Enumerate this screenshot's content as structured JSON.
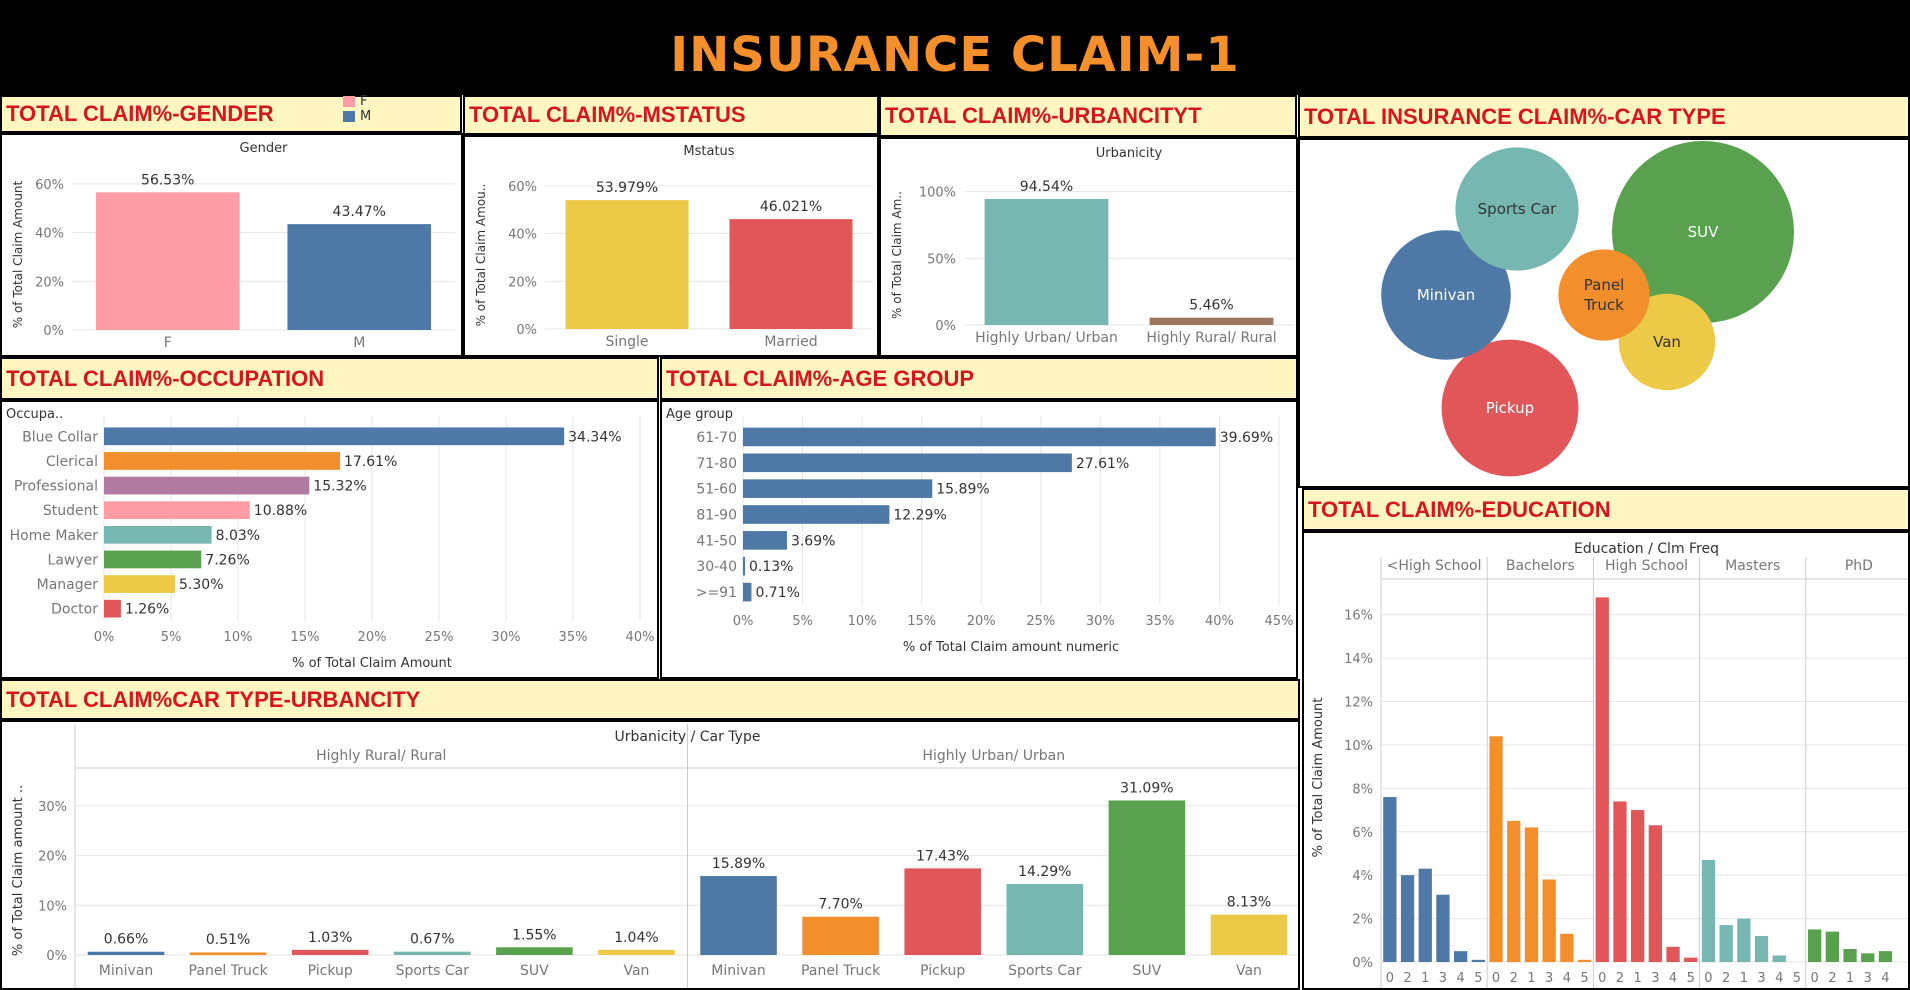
{
  "title": "INSURANCE CLAIM-1",
  "colors": {
    "blue": "#4e79a7",
    "orange": "#f28e2b",
    "red": "#e15759",
    "teal": "#76b7b2",
    "green": "#59a14f",
    "yellow": "#edc948",
    "purple": "#b07aa1",
    "pink": "#ff9da7",
    "brown": "#9c755f",
    "header_bg": "#fff6c2",
    "header_text": "#d6161b",
    "title_text": "#f58f2b"
  },
  "headers": {
    "gender": "TOTAL CLAIM%-GENDER",
    "mstatus": "TOTAL CLAIM%-MSTATUS",
    "urbancity": "TOTAL CLAIM%-URBANCITYT",
    "cartype": "TOTAL INSURANCE CLAIM%-CAR TYPE",
    "occupation": "TOTAL CLAIM%-OCCUPATION",
    "agegroup": "TOTAL CLAIM%-AGE GROUP",
    "education": "TOTAL CLAIM%-EDUCATION",
    "cartype_urban": "TOTAL CLAIM%CAR TYPE-URBANCITY"
  },
  "gender_legend": [
    {
      "label": "F",
      "color": "#ff9da7"
    },
    {
      "label": "M",
      "color": "#4e79a7"
    }
  ],
  "chart_data": [
    {
      "id": "gender",
      "type": "bar",
      "title": "Gender",
      "ylabel": "% of Total Claim Amount",
      "categories": [
        "F",
        "M"
      ],
      "values": [
        56.53,
        43.47
      ],
      "labels": [
        "56.53%",
        "43.47%"
      ],
      "colors": [
        "#ff9da7",
        "#4e79a7"
      ],
      "yticks": [
        "0%",
        "20%",
        "40%",
        "60%"
      ],
      "ylim": [
        0,
        62
      ]
    },
    {
      "id": "mstatus",
      "type": "bar",
      "title": "Mstatus",
      "ylabel": "% of Total Claim Amou..",
      "categories": [
        "Single",
        "Married"
      ],
      "values": [
        53.979,
        46.021
      ],
      "labels": [
        "53.979%",
        "46.021%"
      ],
      "colors": [
        "#edc948",
        "#e15759"
      ],
      "yticks": [
        "0%",
        "20%",
        "40%",
        "60%"
      ],
      "ylim": [
        0,
        62
      ]
    },
    {
      "id": "urbancity",
      "type": "bar",
      "title": "Urbanicity",
      "ylabel": "% of Total Claim Am..",
      "categories": [
        "Highly Urban/ Urban",
        "Highly Rural/ Rural"
      ],
      "values": [
        94.54,
        5.46
      ],
      "labels": [
        "94.54%",
        "5.46%"
      ],
      "colors": [
        "#76b7b2",
        "#9c755f"
      ],
      "yticks": [
        "0%",
        "50%",
        "100%"
      ],
      "ylim": [
        0,
        105
      ]
    },
    {
      "id": "cartype",
      "type": "bubble",
      "categories": [
        "SUV",
        "Pickup",
        "Minivan",
        "Sports Car",
        "Van",
        "Panel Truck"
      ],
      "values": [
        32.64,
        18.46,
        16.55,
        14.96,
        9.17,
        8.21
      ],
      "labels": [
        "SUV",
        "Pickup",
        "Minivan",
        "Sports Car",
        "Van",
        "Panel\nTruck"
      ],
      "colors": [
        "#59a14f",
        "#e15759",
        "#4e79a7",
        "#76b7b2",
        "#edc948",
        "#f28e2b"
      ]
    },
    {
      "id": "occupation",
      "type": "bar-horizontal",
      "dimension_label": "Occupa..",
      "xlabel": "% of Total Claim Amount",
      "categories": [
        "Blue Collar",
        "Clerical",
        "Professional",
        "Student",
        "Home Maker",
        "Lawyer",
        "Manager",
        "Doctor"
      ],
      "values": [
        34.34,
        17.61,
        15.32,
        10.88,
        8.03,
        7.26,
        5.3,
        1.26
      ],
      "labels": [
        "34.34%",
        "17.61%",
        "15.32%",
        "10.88%",
        "8.03%",
        "7.26%",
        "5.30%",
        "1.26%"
      ],
      "colors": [
        "#4e79a7",
        "#f28e2b",
        "#b07aa1",
        "#ff9da7",
        "#76b7b2",
        "#59a14f",
        "#edc948",
        "#e15759"
      ],
      "xticks": [
        "0%",
        "5%",
        "10%",
        "15%",
        "20%",
        "25%",
        "30%",
        "35%",
        "40%"
      ],
      "xlim": [
        0,
        40
      ]
    },
    {
      "id": "agegroup",
      "type": "bar-horizontal",
      "dimension_label": "Age group",
      "xlabel": "% of Total Claim amount numeric",
      "categories": [
        "61-70",
        "71-80",
        "51-60",
        "81-90",
        "41-50",
        "30-40",
        ">=91"
      ],
      "values": [
        39.69,
        27.61,
        15.89,
        12.29,
        3.69,
        0.13,
        0.71
      ],
      "labels": [
        "39.69%",
        "27.61%",
        "15.89%",
        "12.29%",
        "3.69%",
        "0.13%",
        "0.71%"
      ],
      "colors": [
        "#4e79a7",
        "#4e79a7",
        "#4e79a7",
        "#4e79a7",
        "#4e79a7",
        "#4e79a7",
        "#4e79a7"
      ],
      "xticks": [
        "0%",
        "5%",
        "10%",
        "15%",
        "20%",
        "25%",
        "30%",
        "35%",
        "40%",
        "45%"
      ],
      "xlim": [
        0,
        45
      ]
    },
    {
      "id": "education",
      "type": "bar",
      "title": "Education  /  Clm Freq",
      "ylabel": "% of Total Claim Amount",
      "yticks": [
        "0%",
        "2%",
        "4%",
        "6%",
        "8%",
        "10%",
        "12%",
        "14%",
        "16%"
      ],
      "ylim": [
        0,
        17
      ],
      "groups": [
        {
          "name": "<High School",
          "color": "#4e79a7",
          "categories": [
            "0",
            "2",
            "1",
            "3",
            "4",
            "5"
          ],
          "values": [
            7.6,
            4.0,
            4.3,
            3.1,
            0.5,
            0.1
          ]
        },
        {
          "name": "Bachelors",
          "color": "#f28e2b",
          "categories": [
            "0",
            "2",
            "1",
            "3",
            "4",
            "5"
          ],
          "values": [
            10.4,
            6.5,
            6.2,
            3.8,
            1.3,
            0.1
          ]
        },
        {
          "name": "High School",
          "color": "#e15759",
          "categories": [
            "0",
            "2",
            "1",
            "3",
            "4",
            "5"
          ],
          "values": [
            16.8,
            7.4,
            7.0,
            6.3,
            0.7,
            0.2
          ]
        },
        {
          "name": "Masters",
          "color": "#76b7b2",
          "categories": [
            "0",
            "2",
            "1",
            "3",
            "4",
            "5"
          ],
          "values": [
            4.7,
            1.7,
            2.0,
            1.2,
            0.3,
            0
          ]
        },
        {
          "name": "PhD",
          "color": "#59a14f",
          "categories": [
            "0",
            "2",
            "1",
            "3",
            "4"
          ],
          "values": [
            1.5,
            1.4,
            0.6,
            0.4,
            0.5
          ]
        }
      ]
    },
    {
      "id": "cartype_urban",
      "type": "bar",
      "title": "Urbanicity  /  Car Type",
      "ylabel": "% of Total Claim amount ..",
      "yticks": [
        "0%",
        "10%",
        "20%",
        "30%"
      ],
      "ylim": [
        0,
        34
      ],
      "groups": [
        {
          "name": "Highly Rural/ Rural",
          "categories": [
            "Minivan",
            "Panel Truck",
            "Pickup",
            "Sports Car",
            "SUV",
            "Van"
          ],
          "values": [
            0.66,
            0.51,
            1.03,
            0.67,
            1.55,
            1.04
          ],
          "labels": [
            "0.66%",
            "0.51%",
            "1.03%",
            "0.67%",
            "1.55%",
            "1.04%"
          ]
        },
        {
          "name": "Highly Urban/ Urban",
          "categories": [
            "Minivan",
            "Panel Truck",
            "Pickup",
            "Sports Car",
            "SUV",
            "Van"
          ],
          "values": [
            15.89,
            7.7,
            17.43,
            14.29,
            31.09,
            8.13
          ],
          "labels": [
            "15.89%",
            "7.70%",
            "17.43%",
            "14.29%",
            "31.09%",
            "8.13%"
          ]
        }
      ],
      "colors": [
        "#4e79a7",
        "#f28e2b",
        "#e15759",
        "#76b7b2",
        "#59a14f",
        "#edc948"
      ]
    }
  ]
}
